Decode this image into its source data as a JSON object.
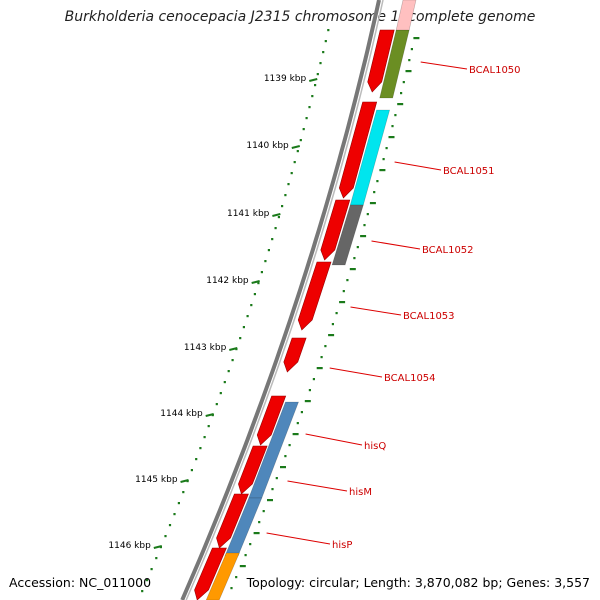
{
  "title": "Burkholderia cenocepacia J2315 chromosome 1, complete genome",
  "accession": "Accession: NC_011000",
  "summary": "Topology: circular; Length: 3,870,082 bp; Genes: 3,557",
  "ruler": {
    "labels": [
      "1139 kbp",
      "1140 kbp",
      "1141 kbp",
      "1142 kbp",
      "1143 kbp",
      "1144 kbp",
      "1145 kbp",
      "1146 kbp"
    ],
    "tick_color": "#1a7a1a"
  },
  "colors": {
    "backbone": "#777777",
    "forward_feature": "#ee0000",
    "label": "#cc0000",
    "leader": "#dd0000",
    "green": "#6b8e23",
    "cyan": "#00e5ee",
    "gray": "#666666",
    "steelblue": "#4f87bb",
    "orange": "#ff9900",
    "pink": "#ffc0c0"
  },
  "genes": [
    {
      "name": "BCAL1050",
      "color": "green"
    },
    {
      "name": "BCAL1051",
      "color": "cyan"
    },
    {
      "name": "BCAL1052",
      "color": "gray"
    },
    {
      "name": "BCAL1053",
      "color": "none"
    },
    {
      "name": "BCAL1054",
      "color": "none"
    },
    {
      "name": "hisQ",
      "color": "steelblue"
    },
    {
      "name": "hisM",
      "color": "steelblue"
    },
    {
      "name": "hisP",
      "color": "steelblue"
    }
  ]
}
